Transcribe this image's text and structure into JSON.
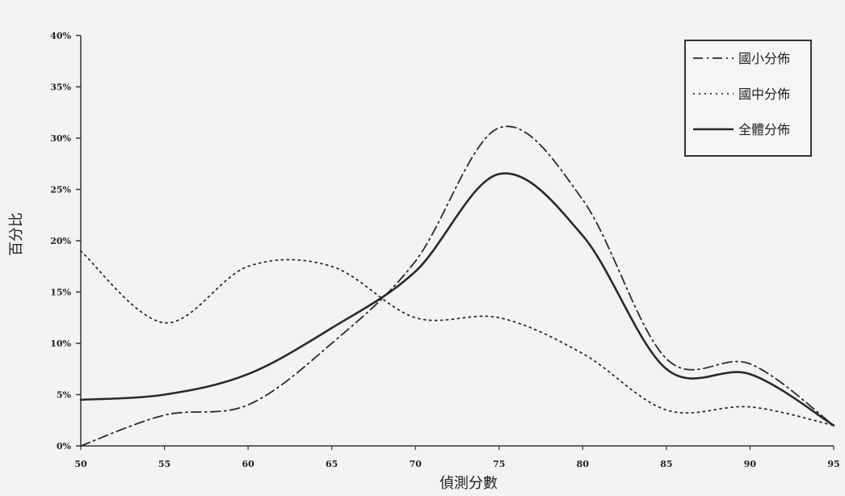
{
  "chart_data": {
    "type": "line",
    "title": "",
    "xlabel": "偵測分數",
    "ylabel": "百分比",
    "x": [
      50,
      55,
      60,
      65,
      70,
      75,
      80,
      85,
      90,
      95
    ],
    "x_tick_labels": [
      "50",
      "55",
      "60",
      "65",
      "70",
      "75",
      "80",
      "85",
      "90",
      "95"
    ],
    "y_tick_labels": [
      "0%",
      "5%",
      "10%",
      "15%",
      "20%",
      "25%",
      "30%",
      "35%",
      "40%"
    ],
    "xlim": [
      50,
      95
    ],
    "ylim": [
      0,
      40
    ],
    "grid": false,
    "legend_position": "top-right",
    "series": [
      {
        "name": "國小分佈",
        "line_style": "dash-dot",
        "color": "#2a2a2a",
        "values": [
          0,
          3,
          4,
          10,
          18,
          31,
          24,
          8.5,
          8,
          2
        ]
      },
      {
        "name": "國中分佈",
        "line_style": "dotted",
        "color": "#2a2a2a",
        "values": [
          19,
          12,
          17.5,
          17.5,
          12.5,
          12.5,
          9,
          3.5,
          3.8,
          2
        ]
      },
      {
        "name": "全體分佈",
        "line_style": "solid",
        "color": "#2a2a2a",
        "values": [
          4.5,
          5,
          7,
          11.5,
          17,
          26.5,
          20.5,
          7.5,
          7,
          2
        ]
      }
    ]
  }
}
